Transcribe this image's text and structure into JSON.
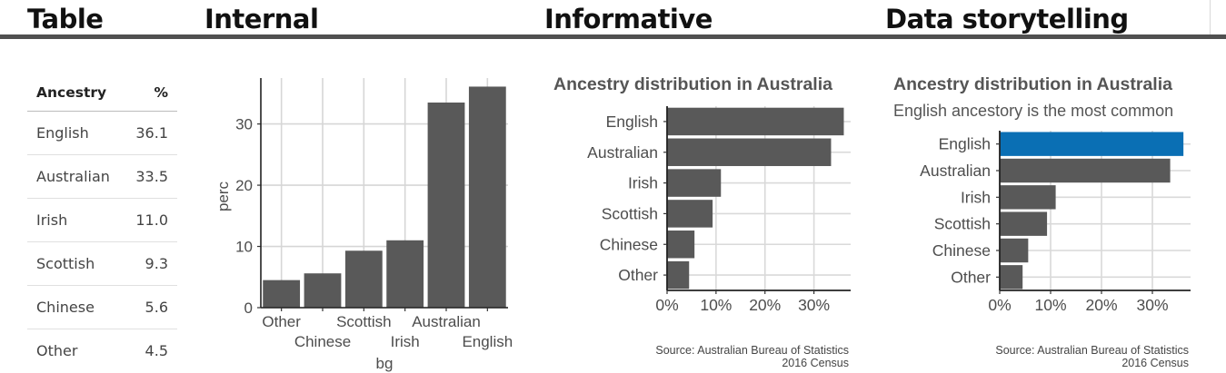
{
  "headings": {
    "table": "Table",
    "internal": "Internal",
    "informative": "Informative",
    "storytelling": "Data storytelling"
  },
  "table": {
    "columns": [
      "Ancestry",
      "%"
    ],
    "rows": [
      [
        "English",
        "36.1"
      ],
      [
        "Australian",
        "33.5"
      ],
      [
        "Irish",
        "11.0"
      ],
      [
        "Scottish",
        "9.3"
      ],
      [
        "Chinese",
        "5.6"
      ],
      [
        "Other",
        "4.5"
      ]
    ]
  },
  "chart_data": [
    {
      "type": "bar",
      "orientation": "vertical",
      "categories": [
        "Other",
        "Chinese",
        "Scottish",
        "Irish",
        "Australian",
        "English"
      ],
      "values": [
        4.5,
        5.6,
        9.3,
        11.0,
        33.5,
        36.1
      ],
      "xlabel": "bg",
      "ylabel": "perc",
      "ylim": [
        0,
        37.5
      ],
      "yticks": [
        0,
        10,
        20,
        30
      ],
      "grid": true,
      "bar_color": "#595959"
    },
    {
      "type": "bar",
      "orientation": "horizontal",
      "title": "Ancestry distribution in Australia",
      "categories": [
        "English",
        "Australian",
        "Irish",
        "Scottish",
        "Chinese",
        "Other"
      ],
      "values": [
        36.1,
        33.5,
        11.0,
        9.3,
        5.6,
        4.5
      ],
      "xticks": [
        "0%",
        "10%",
        "20%",
        "30%"
      ],
      "xlim": [
        0,
        37.5
      ],
      "grid": true,
      "bar_color": "#595959",
      "caption": [
        "Source: Australian Bureau of Statistics",
        "2016 Census"
      ]
    },
    {
      "type": "bar",
      "orientation": "horizontal",
      "title": "Ancestry distribution in Australia",
      "subtitle": "English ancestory is the most common",
      "categories": [
        "English",
        "Australian",
        "Irish",
        "Scottish",
        "Chinese",
        "Other"
      ],
      "values": [
        36.1,
        33.5,
        11.0,
        9.3,
        5.6,
        4.5
      ],
      "xticks": [
        "0%",
        "10%",
        "20%",
        "30%"
      ],
      "xlim": [
        0,
        37.5
      ],
      "grid": true,
      "bar_color": "#595959",
      "highlight_category": "English",
      "highlight_color": "#0a6fb4",
      "caption": [
        "Source: Australian Bureau of Statistics",
        "2016 Census"
      ]
    }
  ]
}
